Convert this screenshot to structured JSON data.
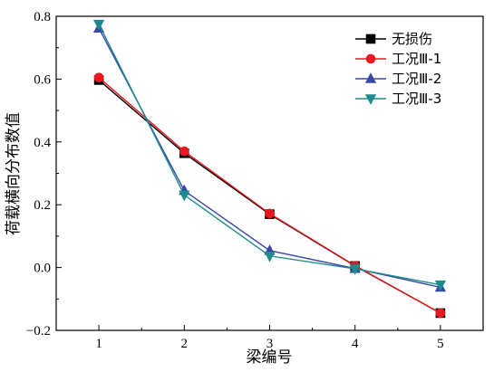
{
  "chart_data": {
    "type": "line",
    "title": "",
    "xlabel": "梁编号",
    "ylabel": "荷载横向分布数值",
    "x": [
      1,
      2,
      3,
      4,
      5
    ],
    "xlim": [
      0.5,
      5.5
    ],
    "ylim": [
      -0.2,
      0.8
    ],
    "x_ticks": [
      "1",
      "2",
      "3",
      "4",
      "5"
    ],
    "y_ticks": [
      "0.8",
      "0.6",
      "0.4",
      "0.2",
      "0.0",
      "−0.2"
    ],
    "y_tick_values": [
      0.8,
      0.6,
      0.4,
      0.2,
      0.0,
      -0.2
    ],
    "grid": false,
    "legend_position": "top-right",
    "series": [
      {
        "name": "无损伤",
        "values": [
          0.597,
          0.364,
          0.17,
          0.005,
          -0.145
        ],
        "color": "#000000",
        "marker": "square"
      },
      {
        "name": "工况Ⅲ-1",
        "values": [
          0.605,
          0.37,
          0.172,
          0.006,
          -0.145
        ],
        "color": "#e8191e",
        "marker": "circle"
      },
      {
        "name": "工况Ⅲ-2",
        "values": [
          0.762,
          0.245,
          0.054,
          -0.003,
          -0.063
        ],
        "color": "#3a47a6",
        "marker": "triangle-up"
      },
      {
        "name": "工况Ⅲ-3",
        "values": [
          0.775,
          0.231,
          0.037,
          -0.004,
          -0.055
        ],
        "color": "#1d8c8c",
        "marker": "triangle-down"
      }
    ]
  }
}
